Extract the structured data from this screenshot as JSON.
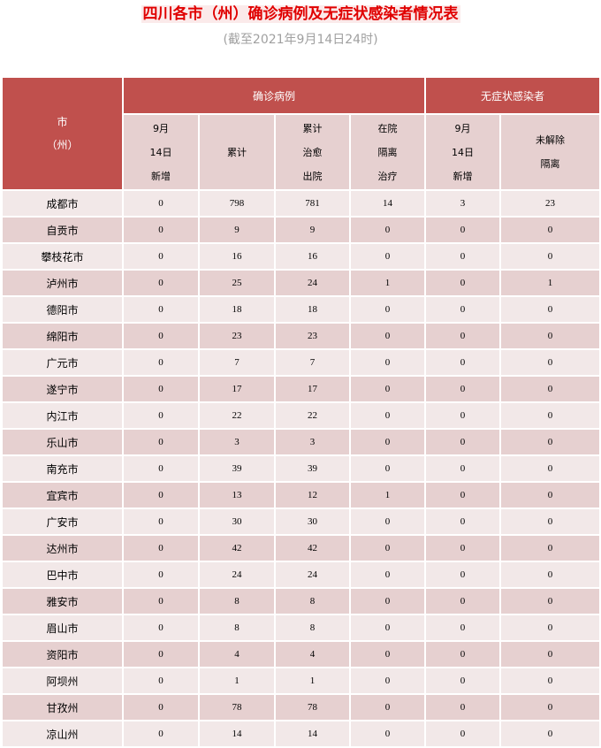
{
  "title": "四川各市（州）确诊病例及无症状感染者情况表",
  "subtitle": "(截至2021年9月14日24时)",
  "colors": {
    "header": "#c0504d",
    "row_light": "#f2e8e8",
    "row_dark": "#e6d0d0",
    "title": "#e00000"
  },
  "header": {
    "city": [
      "市",
      "（州）"
    ],
    "confirmed_group": "确诊病例",
    "asymptomatic_group": "无症状感染者",
    "columns": [
      [
        "9月",
        "14日",
        "新增"
      ],
      [
        "累计"
      ],
      [
        "累计",
        "治愈",
        "出院"
      ],
      [
        "在院",
        "隔离",
        "治疗"
      ],
      [
        "9月",
        "14日",
        "新增"
      ],
      [
        "未解除",
        "隔离"
      ]
    ]
  },
  "rows": [
    [
      "成都市",
      "0",
      "798",
      "781",
      "14",
      "3",
      "23"
    ],
    [
      "自贡市",
      "0",
      "9",
      "9",
      "0",
      "0",
      "0"
    ],
    [
      "攀枝花市",
      "0",
      "16",
      "16",
      "0",
      "0",
      "0"
    ],
    [
      "泸州市",
      "0",
      "25",
      "24",
      "1",
      "0",
      "1"
    ],
    [
      "德阳市",
      "0",
      "18",
      "18",
      "0",
      "0",
      "0"
    ],
    [
      "绵阳市",
      "0",
      "23",
      "23",
      "0",
      "0",
      "0"
    ],
    [
      "广元市",
      "0",
      "7",
      "7",
      "0",
      "0",
      "0"
    ],
    [
      "遂宁市",
      "0",
      "17",
      "17",
      "0",
      "0",
      "0"
    ],
    [
      "内江市",
      "0",
      "22",
      "22",
      "0",
      "0",
      "0"
    ],
    [
      "乐山市",
      "0",
      "3",
      "3",
      "0",
      "0",
      "0"
    ],
    [
      "南充市",
      "0",
      "39",
      "39",
      "0",
      "0",
      "0"
    ],
    [
      "宜宾市",
      "0",
      "13",
      "12",
      "1",
      "0",
      "0"
    ],
    [
      "广安市",
      "0",
      "30",
      "30",
      "0",
      "0",
      "0"
    ],
    [
      "达州市",
      "0",
      "42",
      "42",
      "0",
      "0",
      "0"
    ],
    [
      "巴中市",
      "0",
      "24",
      "24",
      "0",
      "0",
      "0"
    ],
    [
      "雅安市",
      "0",
      "8",
      "8",
      "0",
      "0",
      "0"
    ],
    [
      "眉山市",
      "0",
      "8",
      "8",
      "0",
      "0",
      "0"
    ],
    [
      "资阳市",
      "0",
      "4",
      "4",
      "0",
      "0",
      "0"
    ],
    [
      "阿坝州",
      "0",
      "1",
      "1",
      "0",
      "0",
      "0"
    ],
    [
      "甘孜州",
      "0",
      "78",
      "78",
      "0",
      "0",
      "0"
    ],
    [
      "凉山州",
      "0",
      "14",
      "14",
      "0",
      "0",
      "0"
    ]
  ]
}
